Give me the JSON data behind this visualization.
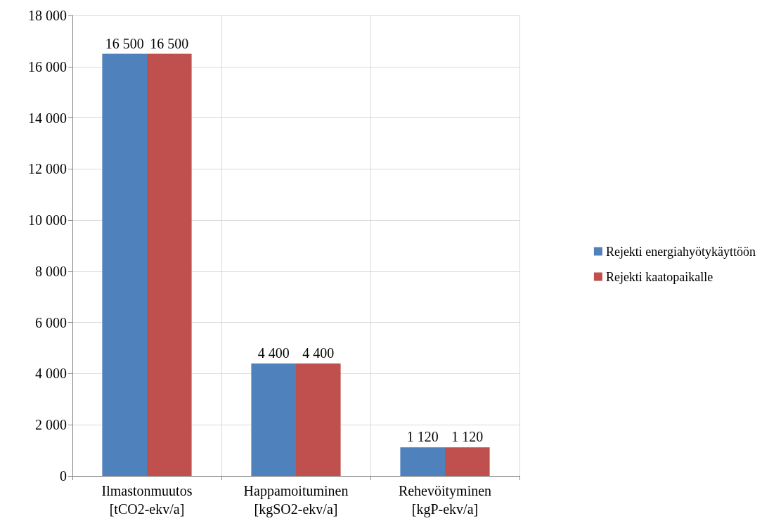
{
  "chart_data": {
    "type": "bar",
    "categories": [
      "Ilmastonmuutos\n[tCO2-ekv/a]",
      "Happamoituminen\n[kgSO2-ekv/a]",
      "Rehevöityminen\n[kgP-ekv/a]"
    ],
    "series": [
      {
        "name": "Rejekti energiahyötykäyttöön",
        "color": "#4f81bd",
        "values": [
          16500,
          4400,
          1120
        ],
        "value_labels": [
          "16 500",
          "4 400",
          "1 120"
        ]
      },
      {
        "name": "Rejekti kaatopaikalle",
        "color": "#c0504d",
        "values": [
          16500,
          4400,
          1120
        ],
        "value_labels": [
          "16 500",
          "4 400",
          "1 120"
        ]
      }
    ],
    "ylim": [
      0,
      18000
    ],
    "yticks": [
      {
        "value": 0,
        "label": "0"
      },
      {
        "value": 2000,
        "label": "2 000"
      },
      {
        "value": 4000,
        "label": "4 000"
      },
      {
        "value": 6000,
        "label": "6 000"
      },
      {
        "value": 8000,
        "label": "8 000"
      },
      {
        "value": 10000,
        "label": "10 000"
      },
      {
        "value": 12000,
        "label": "12 000"
      },
      {
        "value": 14000,
        "label": "14 000"
      },
      {
        "value": 16000,
        "label": "16 000"
      },
      {
        "value": 18000,
        "label": "18 000"
      }
    ],
    "grid": true,
    "legend": "right"
  }
}
